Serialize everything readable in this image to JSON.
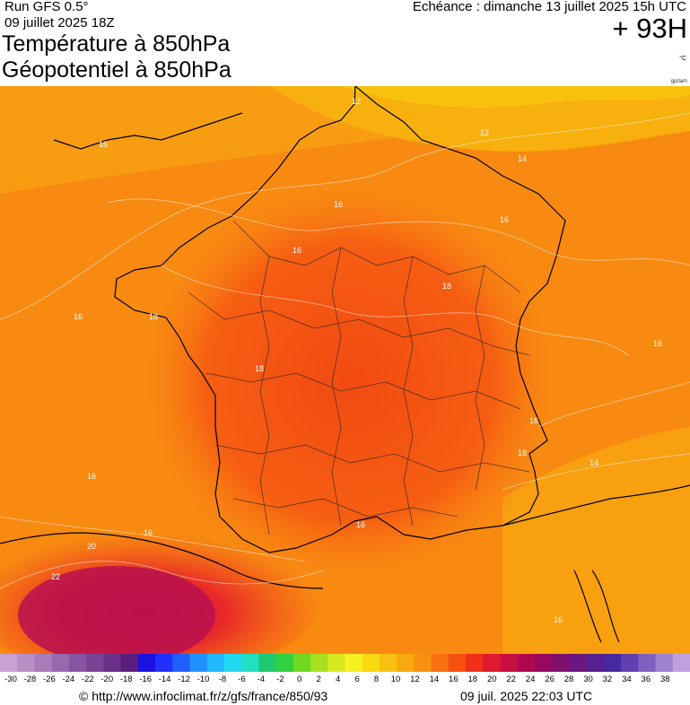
{
  "header": {
    "run": "Run GFS 0.5°",
    "run_date": "09 juillet 2025 18Z",
    "title_line1": "Température à 850hPa",
    "title_line2": "Géopotentiel à 850hPa",
    "echeance": "Echéance : dimanche 13 juillet 2025 15h UTC",
    "horizon": "+ 93H",
    "unit": "°C",
    "credit": "gpdam"
  },
  "map": {
    "contour_labels": [
      "12",
      "12",
      "14",
      "16",
      "16",
      "16",
      "16",
      "18",
      "18",
      "18",
      "16",
      "18",
      "16",
      "16",
      "14",
      "16",
      "16",
      "16",
      "20",
      "22",
      "16"
    ]
  },
  "scale": {
    "ticks": [
      "-30",
      "-28",
      "-26",
      "-24",
      "-22",
      "-20",
      "-18",
      "-16",
      "-14",
      "-12",
      "-10",
      "-8",
      "-6",
      "-4",
      "-2",
      "0",
      "2",
      "4",
      "6",
      "8",
      "10",
      "12",
      "14",
      "16",
      "18",
      "20",
      "22",
      "24",
      "26",
      "28",
      "30",
      "32",
      "34",
      "36",
      "38"
    ],
    "colors": [
      "#c8a2d2",
      "#b98fc6",
      "#a97bba",
      "#9968ae",
      "#8955a2",
      "#7a4396",
      "#6b308a",
      "#5c1e7e",
      "#1a12e0",
      "#2030ff",
      "#2060ff",
      "#2090ff",
      "#20b8ff",
      "#20d8f0",
      "#20e0c0",
      "#20c870",
      "#30d040",
      "#70d820",
      "#a8e020",
      "#d8e820",
      "#f8f020",
      "#f8d810",
      "#f8c010",
      "#f8a810",
      "#f89010",
      "#f87010",
      "#f85010",
      "#f03018",
      "#e01830",
      "#c81040",
      "#b00850",
      "#980860",
      "#801070",
      "#681880",
      "#582090",
      "#4828a0",
      "#6040b0",
      "#8060c0",
      "#a080d0",
      "#c0a0e0"
    ]
  },
  "footer": {
    "url": "© http://www.infoclimat.fr/z/gfs/france/850/93",
    "date": "09 juil. 2025 22:03 UTC"
  }
}
